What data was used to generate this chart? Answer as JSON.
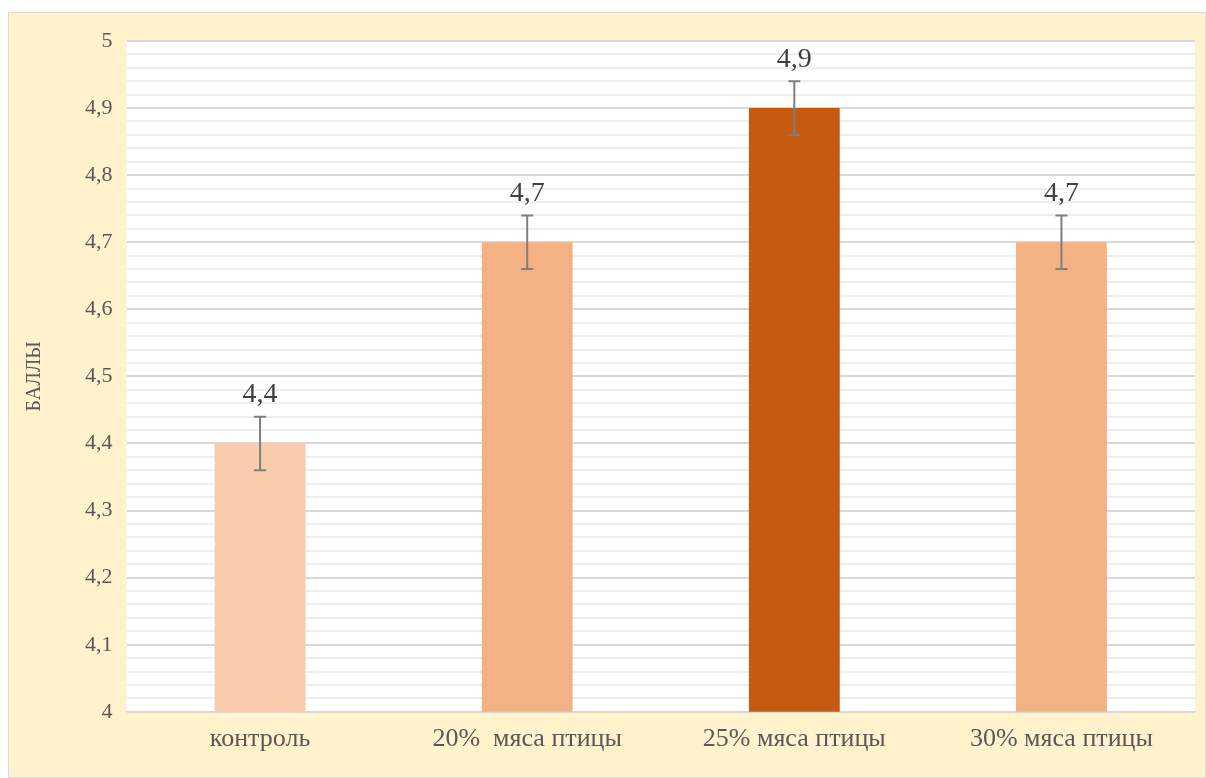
{
  "chart_data": {
    "type": "bar",
    "ylabel": "БАЛЛЫ",
    "categories": [
      "контроль",
      "20%  мяса птицы",
      "25% мяса птицы",
      "30% мяса птицы"
    ],
    "values": [
      4.4,
      4.7,
      4.9,
      4.7
    ],
    "colors": [
      "#f7cbac",
      "#f4b183",
      "#c55a11",
      "#f4b183"
    ],
    "errors": [
      0.04,
      0.04,
      0.04,
      0.04
    ],
    "value_labels": [
      "4,4",
      "4,7",
      "4,9",
      "4,7"
    ],
    "ylim": [
      4,
      5
    ],
    "yticks": [
      4,
      {
        "value": 4.02,
        "label": null
      },
      {
        "value": 4.04,
        "label": null
      },
      {
        "value": 4.06,
        "label": null
      },
      {
        "value": 4.08,
        "label": null
      },
      {
        "value": 4.1,
        "label": "4,1"
      },
      {
        "value": 4.12,
        "label": null
      },
      {
        "value": 4.14,
        "label": null
      },
      {
        "value": 4.16,
        "label": null
      },
      {
        "value": 4.18,
        "label": null
      },
      {
        "value": 4.2,
        "label": "4,2"
      },
      {
        "value": 4.22,
        "label": null
      },
      {
        "value": 4.24,
        "label": null
      },
      {
        "value": 4.26,
        "label": null
      },
      {
        "value": 4.28,
        "label": null
      },
      {
        "value": 4.3,
        "label": "4,3"
      },
      {
        "value": 4.32,
        "label": null
      },
      {
        "value": 4.34,
        "label": null
      },
      {
        "value": 4.36,
        "label": null
      },
      {
        "value": 4.38,
        "label": null
      },
      {
        "value": 4.4,
        "label": "4,4"
      },
      {
        "value": 4.42,
        "label": null
      },
      {
        "value": 4.44,
        "label": null
      },
      {
        "value": 4.46,
        "label": null
      },
      {
        "value": 4.48,
        "label": null
      },
      {
        "value": 4.5,
        "label": "4,5"
      },
      {
        "value": 4.52,
        "label": null
      },
      {
        "value": 4.54,
        "label": null
      },
      {
        "value": 4.56,
        "label": null
      },
      {
        "value": 4.58,
        "label": null
      },
      {
        "value": 4.6,
        "label": "4,6"
      },
      {
        "value": 4.62,
        "label": null
      },
      {
        "value": 4.64,
        "label": null
      },
      {
        "value": 4.66,
        "label": null
      },
      {
        "value": 4.68,
        "label": null
      },
      {
        "value": 4.7,
        "label": "4,7"
      },
      {
        "value": 4.72,
        "label": null
      },
      {
        "value": 4.74,
        "label": null
      },
      {
        "value": 4.76,
        "label": null
      },
      {
        "value": 4.78,
        "label": null
      },
      {
        "value": 4.8,
        "label": "4,8"
      },
      {
        "value": 4.82,
        "label": null
      },
      {
        "value": 4.84,
        "label": null
      },
      {
        "value": 4.86,
        "label": null
      },
      {
        "value": 4.88,
        "label": null
      },
      {
        "value": 4.9,
        "label": "4,9"
      },
      {
        "value": 4.92,
        "label": null
      },
      {
        "value": 4.94,
        "label": null
      },
      {
        "value": 4.96,
        "label": null
      },
      {
        "value": 4.98,
        "label": null
      },
      5
    ],
    "grid": "y",
    "legend": false
  }
}
